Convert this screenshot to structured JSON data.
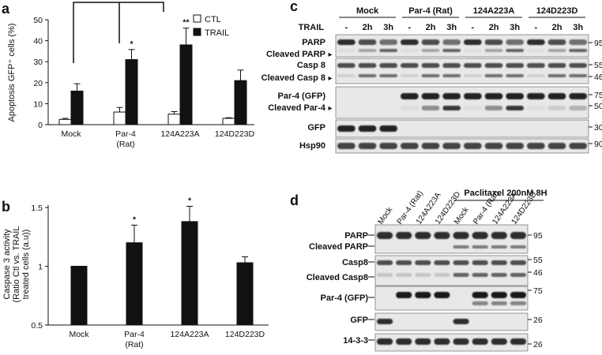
{
  "panels": {
    "a": "a",
    "b": "b",
    "c": "c",
    "d": "d"
  },
  "chart_data": [
    {
      "type": "bar",
      "panel": "a",
      "ylabel": "Apoptosis GFP⁺ cells (%)",
      "ylim": [
        0,
        50
      ],
      "yticks": [
        "0",
        "10",
        "20",
        "30",
        "40",
        "50"
      ],
      "categories": [
        "Mock",
        "Par-4 (Rat)",
        "124A223A",
        "124D223D"
      ],
      "category_lines": [
        [
          "Mock"
        ],
        [
          "Par-4",
          "(Rat)"
        ],
        [
          "124A223A"
        ],
        [
          "124D223D"
        ]
      ],
      "series": [
        {
          "name": "CTL",
          "color": "#ffffff",
          "values": [
            2.5,
            6,
            5,
            3
          ],
          "errors": [
            0.5,
            2.2,
            1.2,
            0.3
          ]
        },
        {
          "name": "TRAIL",
          "color": "#111111",
          "values": [
            16,
            31,
            38,
            21
          ],
          "errors": [
            3.5,
            4.8,
            8,
            5
          ]
        }
      ],
      "significance": [
        {
          "category": 1,
          "label": "*"
        },
        {
          "category": 2,
          "label": "**"
        }
      ],
      "legend": "top-right"
    },
    {
      "type": "bar",
      "panel": "b",
      "ylabel": [
        "Caspase 3 activity",
        "(Ratio Ctl vs. TRAIL",
        "treated cells (a.u))"
      ],
      "ylim": [
        0.5,
        1.5
      ],
      "yticks": [
        "0.5",
        "1",
        "1.5"
      ],
      "categories": [
        "Mock",
        "Par-4 (Rat)",
        "124A223A",
        "124D223D"
      ],
      "category_lines": [
        [
          "Mock"
        ],
        [
          "Par-4",
          "(Rat)"
        ],
        [
          "124A223A"
        ],
        [
          "124D223D"
        ]
      ],
      "series": [
        {
          "name": "",
          "color": "#111111",
          "values": [
            1.0,
            1.2,
            1.38,
            1.03
          ],
          "errors": [
            0.005,
            0.15,
            0.13,
            0.05
          ]
        }
      ],
      "significance": [
        {
          "category": 1,
          "label": "*"
        },
        {
          "category": 2,
          "label": "*"
        }
      ]
    }
  ],
  "blot_c": {
    "trail_label": "TRAIL",
    "groups": [
      "Mock",
      "Par-4 (Rat)",
      "124A223A",
      "124D223D"
    ],
    "lanes": [
      "-",
      "2h",
      "3h",
      "-",
      "2h",
      "3h",
      "-",
      "2h",
      "3h",
      "-",
      "2h",
      "3h"
    ],
    "rows": [
      {
        "labels": [
          "PARP",
          "Cleaved PARP"
        ],
        "markers": [
          "95"
        ]
      },
      {
        "labels": [
          "Casp 8",
          "Cleaved Casp 8"
        ],
        "markers": [
          "55",
          "46"
        ]
      },
      {
        "labels": [
          "Par-4 (GFP)",
          "Cleaved Par-4"
        ],
        "markers": [
          "75",
          "50"
        ]
      },
      {
        "labels": [
          "GFP"
        ],
        "markers": [
          "30"
        ]
      },
      {
        "labels": [
          "Hsp90"
        ],
        "markers": [
          "90"
        ]
      }
    ]
  },
  "blot_d": {
    "treatment": "Paclitaxel 200nM 8H",
    "lanes": [
      "Mock",
      "Par-4 (Rat)",
      "124A223A",
      "124D223D",
      "Mock",
      "Par-4 (Rat)",
      "124A223A",
      "124D223D"
    ],
    "rows": [
      {
        "labels": [
          "PARP",
          "Cleaved PARP"
        ],
        "markers": [
          "95"
        ]
      },
      {
        "labels": [
          "Casp8",
          "Cleaved Casp8"
        ],
        "markers": [
          "55",
          "46"
        ]
      },
      {
        "labels": [
          "Par-4 (GFP)"
        ],
        "markers": [
          "75"
        ]
      },
      {
        "labels": [
          "GFP"
        ],
        "markers": [
          "26"
        ]
      },
      {
        "labels": [
          "14-3-3"
        ],
        "markers": [
          "26"
        ]
      }
    ]
  }
}
